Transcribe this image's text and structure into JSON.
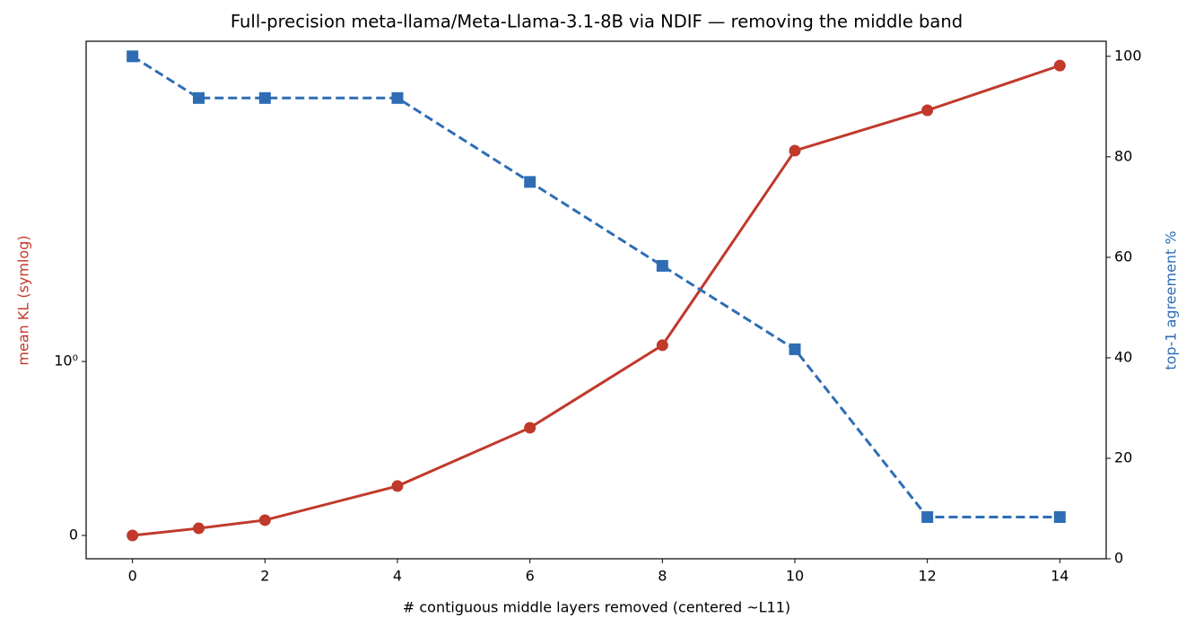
{
  "chart_data": {
    "type": "line",
    "title": "Full-precision meta-llama/Meta-Llama-3.1-8B via NDIF — removing the middle band",
    "xlabel": "# contiguous middle layers removed (centered ~L11)",
    "ylabel": "mean KL (symlog)",
    "y2label": "top-1 agreement %",
    "x": [
      0,
      1,
      2,
      4,
      6,
      8,
      10,
      12,
      14
    ],
    "xlim": [
      -0.7,
      14.7
    ],
    "xticks": [
      0,
      2,
      4,
      6,
      8,
      10,
      12,
      14
    ],
    "yscale": "symlog",
    "linthresh": 1,
    "ylim": [
      -0.134,
      111
    ],
    "yticks": [
      0,
      {
        "value": 1,
        "label": "10⁰"
      }
    ],
    "y2lim": [
      0,
      103
    ],
    "y2ticks": [
      0,
      20,
      40,
      60,
      80,
      100
    ],
    "series": [
      {
        "name": "mean KL",
        "color": "#c0392b",
        "marker": "circle",
        "linestyle": "solid",
        "values": [
          0,
          0.041,
          0.088,
          0.284,
          0.619,
          1.27,
          22.2,
          40.2,
          77.6
        ]
      },
      {
        "name": "top-1 agreement",
        "color": "#2e6db4",
        "marker": "square",
        "linestyle": "dashed",
        "axis": "y2",
        "values": [
          100,
          91.7,
          91.7,
          91.7,
          75,
          58.3,
          41.7,
          8.3,
          8.3
        ]
      }
    ]
  }
}
